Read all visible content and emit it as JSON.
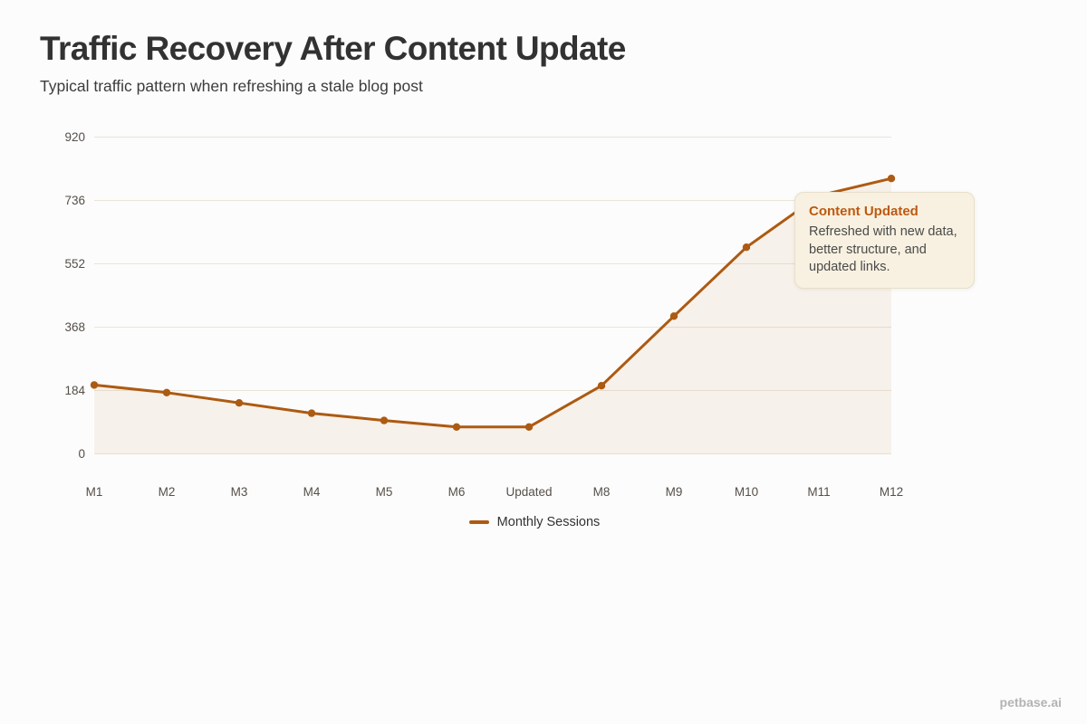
{
  "page": {
    "title": "Traffic Recovery After Content Update",
    "subtitle": "Typical traffic pattern when refreshing a stale blog post",
    "watermark": "petbase.ai"
  },
  "annotation": {
    "title": "Content Updated",
    "body": "Refreshed with new data, better structure, and updated links."
  },
  "colors": {
    "accent_line": "#ad5a12",
    "area_fill": "rgba(180,94,20,0.07)",
    "gridline": "#eae5da",
    "annotation_bg": "#f8f1e1",
    "annotation_title": "#bd5a10",
    "title_text": "#323232",
    "axis_text": "#554f49",
    "watermark_text": "#b3b3b3"
  },
  "chart_data": {
    "type": "area",
    "title": "Traffic Recovery After Content Update",
    "subtitle": "Typical traffic pattern when refreshing a stale blog post",
    "categories": [
      "M1",
      "M2",
      "M3",
      "M4",
      "M5",
      "M6",
      "Updated",
      "M8",
      "M9",
      "M10",
      "M11",
      "M12"
    ],
    "series": [
      {
        "name": "Monthly Sessions",
        "values": [
          200,
          178,
          148,
          118,
          97,
          78,
          78,
          198,
          400,
          600,
          750,
          800
        ]
      }
    ],
    "xlabel": "",
    "ylabel": "",
    "yticks": [
      0,
      184,
      368,
      552,
      736,
      920
    ],
    "ylim": [
      0,
      920
    ],
    "grid": true,
    "legend_position": "bottom",
    "line_color": "#ad5a12",
    "fill_color": "rgba(180,94,20,0.07)",
    "grid_color": "#eae5da",
    "annotation": {
      "title": "Content Updated",
      "text": "Refreshed with new data, better structure, and updated links.",
      "near_category": "M11"
    }
  }
}
